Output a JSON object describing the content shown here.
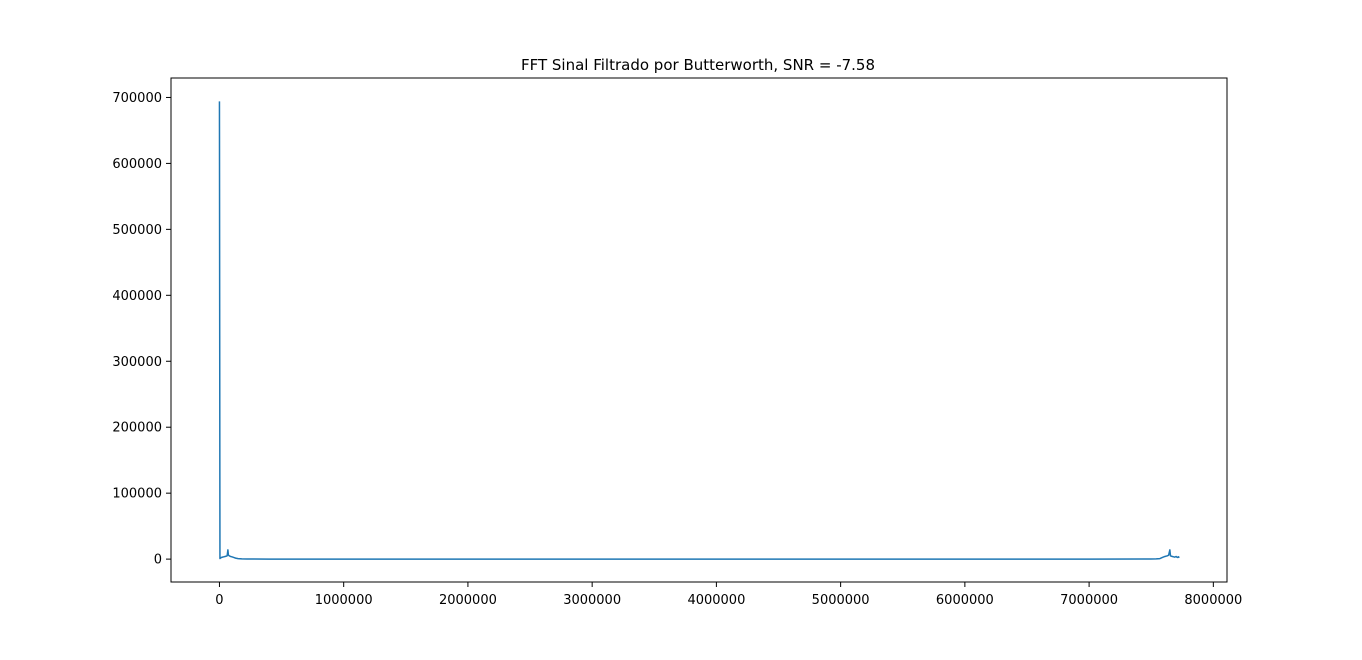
{
  "chart_data": {
    "type": "line",
    "title": "FFT Sinal Filtrado por Butterworth, SNR = -7.58",
    "xlabel": "",
    "ylabel": "",
    "xlim": [
      -390000,
      8110000
    ],
    "ylim": [
      -34700,
      729500
    ],
    "xticks": [
      {
        "value": 0,
        "label": "0"
      },
      {
        "value": 1000000,
        "label": "1000000"
      },
      {
        "value": 2000000,
        "label": "2000000"
      },
      {
        "value": 3000000,
        "label": "3000000"
      },
      {
        "value": 4000000,
        "label": "4000000"
      },
      {
        "value": 5000000,
        "label": "5000000"
      },
      {
        "value": 6000000,
        "label": "6000000"
      },
      {
        "value": 7000000,
        "label": "7000000"
      },
      {
        "value": 8000000,
        "label": "8000000"
      }
    ],
    "yticks": [
      {
        "value": 0,
        "label": "0"
      },
      {
        "value": 100000,
        "label": "100000"
      },
      {
        "value": 200000,
        "label": "200000"
      },
      {
        "value": 300000,
        "label": "300000"
      },
      {
        "value": 400000,
        "label": "400000"
      },
      {
        "value": 500000,
        "label": "500000"
      },
      {
        "value": 600000,
        "label": "600000"
      },
      {
        "value": 700000,
        "label": "700000"
      }
    ],
    "grid": false,
    "series": [
      {
        "color": "#1f77b4",
        "x": [
          0,
          4000,
          8000,
          15000,
          25000,
          35000,
          45000,
          55000,
          62000,
          68000,
          72000,
          76000,
          80000,
          84000,
          90000,
          100000,
          115000,
          130000,
          150000,
          180000,
          220000,
          400000,
          1000000,
          2000000,
          3000000,
          4000000,
          5000000,
          6000000,
          7000000,
          7500000,
          7540000,
          7570000,
          7590000,
          7610000,
          7630000,
          7640000,
          7650000,
          7655000,
          7660000,
          7670000,
          7680000,
          7690000,
          7700000,
          7710000,
          7720000,
          7725000
        ],
        "y": [
          694000,
          1000,
          1500,
          2500,
          3000,
          3500,
          4000,
          4500,
          5000,
          14000,
          6000,
          5500,
          5000,
          4500,
          4000,
          3500,
          2500,
          1500,
          800,
          300,
          100,
          50,
          0,
          0,
          0,
          0,
          0,
          0,
          50,
          100,
          300,
          800,
          2500,
          4000,
          5000,
          6000,
          14000,
          5000,
          4500,
          4000,
          3500,
          3000,
          4000,
          2500,
          3500,
          2000
        ]
      }
    ]
  }
}
